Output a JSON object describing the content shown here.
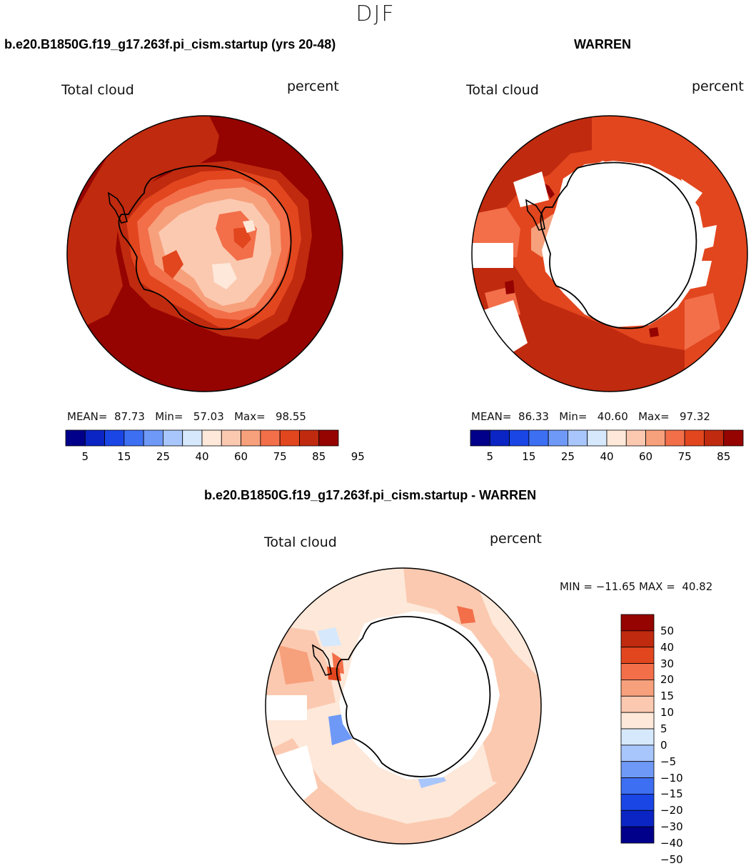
{
  "season": "DJF",
  "panels": {
    "left": {
      "case": "b.e20.B1850G.f19_g17.263f.pi_cism.startup (yrs 20-48)",
      "variable": "Total cloud",
      "units": "percent",
      "stats": {
        "mean_label": "MEAN=",
        "mean": "87.73",
        "min_label": "Min=",
        "min": "57.03",
        "max_label": "Max=",
        "max": "98.55"
      }
    },
    "right": {
      "case": "WARREN",
      "variable": "Total cloud",
      "units": "percent",
      "stats": {
        "mean_label": "MEAN=",
        "mean": "86.33",
        "min_label": "Min=",
        "min": "40.60",
        "max_label": "Max=",
        "max": "97.32"
      }
    },
    "diff": {
      "title": "b.e20.B1850G.f19_g17.263f.pi_cism.startup - WARREN",
      "variable": "Total cloud",
      "units": "percent",
      "range": "MIN = −11.65 MAX =  40.82"
    }
  },
  "colorbar_abs": {
    "colors": [
      "#00008a",
      "#0a25c4",
      "#1a46e6",
      "#3d6ff2",
      "#6f99f7",
      "#a8c6fb",
      "#d6e8fc",
      "#fde8d9",
      "#fbc9b0",
      "#f7a07c",
      "#f26f4a",
      "#e2461e",
      "#c02a0f",
      "#950400"
    ],
    "tick_labels": [
      "5",
      "15",
      "25",
      "40",
      "60",
      "75",
      "85",
      "95"
    ]
  },
  "colorbar_diff": {
    "colors": [
      "#950400",
      "#c02a0f",
      "#e2461e",
      "#f26f4a",
      "#f7a07c",
      "#fbc9b0",
      "#fde8d9",
      "#d6e8fc",
      "#a8c6fb",
      "#6f99f7",
      "#3d6ff2",
      "#1a46e6",
      "#0a25c4",
      "#00008a"
    ],
    "tick_labels": [
      "50",
      "40",
      "30",
      "20",
      "15",
      "10",
      "5",
      "0",
      "−5",
      "−10",
      "−15",
      "−20",
      "−30",
      "−40",
      "−50"
    ]
  }
}
